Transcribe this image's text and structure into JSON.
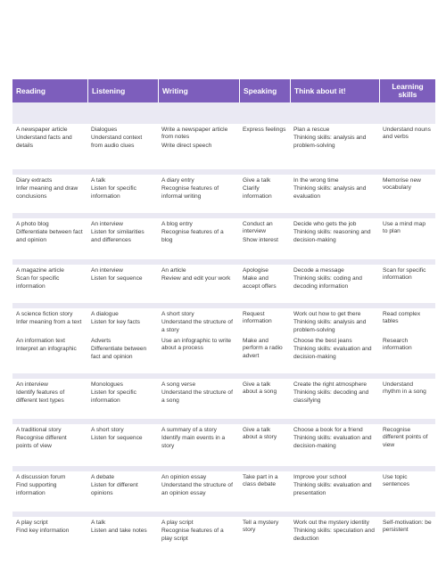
{
  "headers": [
    "Reading",
    "Listening",
    "Writing",
    "Speaking",
    "Think about it!",
    "Learning skills"
  ],
  "units": [
    {
      "rows": [
        {
          "reading": [
            "A newspaper article",
            "Understand facts and details"
          ],
          "listening": [
            "Dialogues",
            "Understand context from audio clues"
          ],
          "writing": [
            "Write a newspaper article from notes",
            "Write direct speech"
          ],
          "speaking": [
            "Express feelings"
          ],
          "think": [
            "Plan a rescue",
            "Thinking skills: analysis and problem-solving"
          ],
          "learning": [
            "Understand nouns and verbs"
          ]
        }
      ]
    },
    {
      "rows": [
        {
          "reading": [
            "Diary extracts",
            "Infer meaning and draw conclusions"
          ],
          "listening": [
            "A talk",
            "Listen for specific information"
          ],
          "writing": [
            "A diary entry",
            "Recognise features of informal writing"
          ],
          "speaking": [
            "Give a talk",
            "Clarify information"
          ],
          "think": [
            "In the wrong time",
            "Thinking skills: analysis and evaluation"
          ],
          "learning": [
            "Memorise new vocabulary"
          ]
        }
      ]
    },
    {
      "rows": [
        {
          "reading": [
            "A photo blog",
            "Differentiate between fact and opinion"
          ],
          "listening": [
            "An interview",
            "Listen for similarities and differences"
          ],
          "writing": [
            "A blog entry",
            "Recognise features of a blog"
          ],
          "speaking": [
            "Conduct an interview",
            "Show interest"
          ],
          "think": [
            "Decide who gets the job",
            "Thinking skills: reasoning and decision-making"
          ],
          "learning": [
            "Use a mind map to plan"
          ]
        }
      ]
    },
    {
      "rows": [
        {
          "reading": [
            "A magazine article",
            "Scan for specific information"
          ],
          "listening": [
            "An interview",
            "Listen for sequence"
          ],
          "writing": [
            "An article",
            "Review and edit your work"
          ],
          "speaking": [
            "Apologise",
            "Make and accept offers"
          ],
          "think": [
            "Decode a message",
            "Thinking skills: coding and decoding information"
          ],
          "learning": [
            "Scan for specific information"
          ]
        }
      ]
    },
    {
      "rows": [
        {
          "reading": [
            "A science fiction story",
            "Infer meaning from a text"
          ],
          "listening": [
            "A dialogue",
            "Listen for key facts"
          ],
          "writing": [
            "A short story",
            "Understand the structure of a story"
          ],
          "speaking": [
            "Request information"
          ],
          "think": [
            "Work out how to get there",
            "Thinking skills: analysis and problem-solving"
          ],
          "learning": [
            "Read complex tables"
          ]
        },
        {
          "reading": [
            "An information text",
            "Interpret an infographic"
          ],
          "listening": [
            "Adverts",
            "Differentiate between fact and opinion"
          ],
          "writing": [
            "Use an infographic to write about a process"
          ],
          "speaking": [
            "Make and perform a radio advert"
          ],
          "think": [
            "Choose the best jeans",
            "Thinking skills: evaluation and decision-making"
          ],
          "learning": [
            "Research information"
          ]
        }
      ]
    },
    {
      "rows": [
        {
          "reading": [
            "An interview",
            "Identify features of different text types"
          ],
          "listening": [
            "Monologues",
            "Listen for specific information"
          ],
          "writing": [
            "A song verse",
            "Understand the structure of a song"
          ],
          "speaking": [
            "Give a talk about a song"
          ],
          "think": [
            "Create the right atmosphere",
            "Thinking skills: decoding and classifying"
          ],
          "learning": [
            "Understand rhythm in a song"
          ]
        }
      ]
    },
    {
      "rows": [
        {
          "reading": [
            "A traditional story",
            "Recognise different points of view"
          ],
          "listening": [
            "A short story",
            "Listen for sequence"
          ],
          "writing": [
            "A summary of a story",
            "Identify main events in a story"
          ],
          "speaking": [
            "Give a talk about a story"
          ],
          "think": [
            "Choose a book for a friend",
            "Thinking skills: evaluation and decision-making"
          ],
          "learning": [
            "Recognise different points of view"
          ]
        }
      ]
    },
    {
      "rows": [
        {
          "reading": [
            "A discussion forum",
            "Find supporting information"
          ],
          "listening": [
            "A debate",
            "Listen for different opinions"
          ],
          "writing": [
            "An opinion essay",
            "Understand the structure of an opinion essay"
          ],
          "speaking": [
            "Take part in a class debate"
          ],
          "think": [
            "Improve your school",
            "Thinking skills: evaluation and presentation"
          ],
          "learning": [
            "Use topic sentences"
          ]
        }
      ]
    },
    {
      "rows": [
        {
          "reading": [
            "A play script",
            "Find key information"
          ],
          "listening": [
            "A talk",
            "Listen and take notes"
          ],
          "writing": [
            "A play script",
            "Recognise features of a play script"
          ],
          "speaking": [
            "Tell a mystery story"
          ],
          "think": [
            "Work out the mystery identity",
            "Thinking skills: speculation and deduction"
          ],
          "learning": [
            "Self-motivation: be persistent"
          ]
        }
      ]
    }
  ]
}
